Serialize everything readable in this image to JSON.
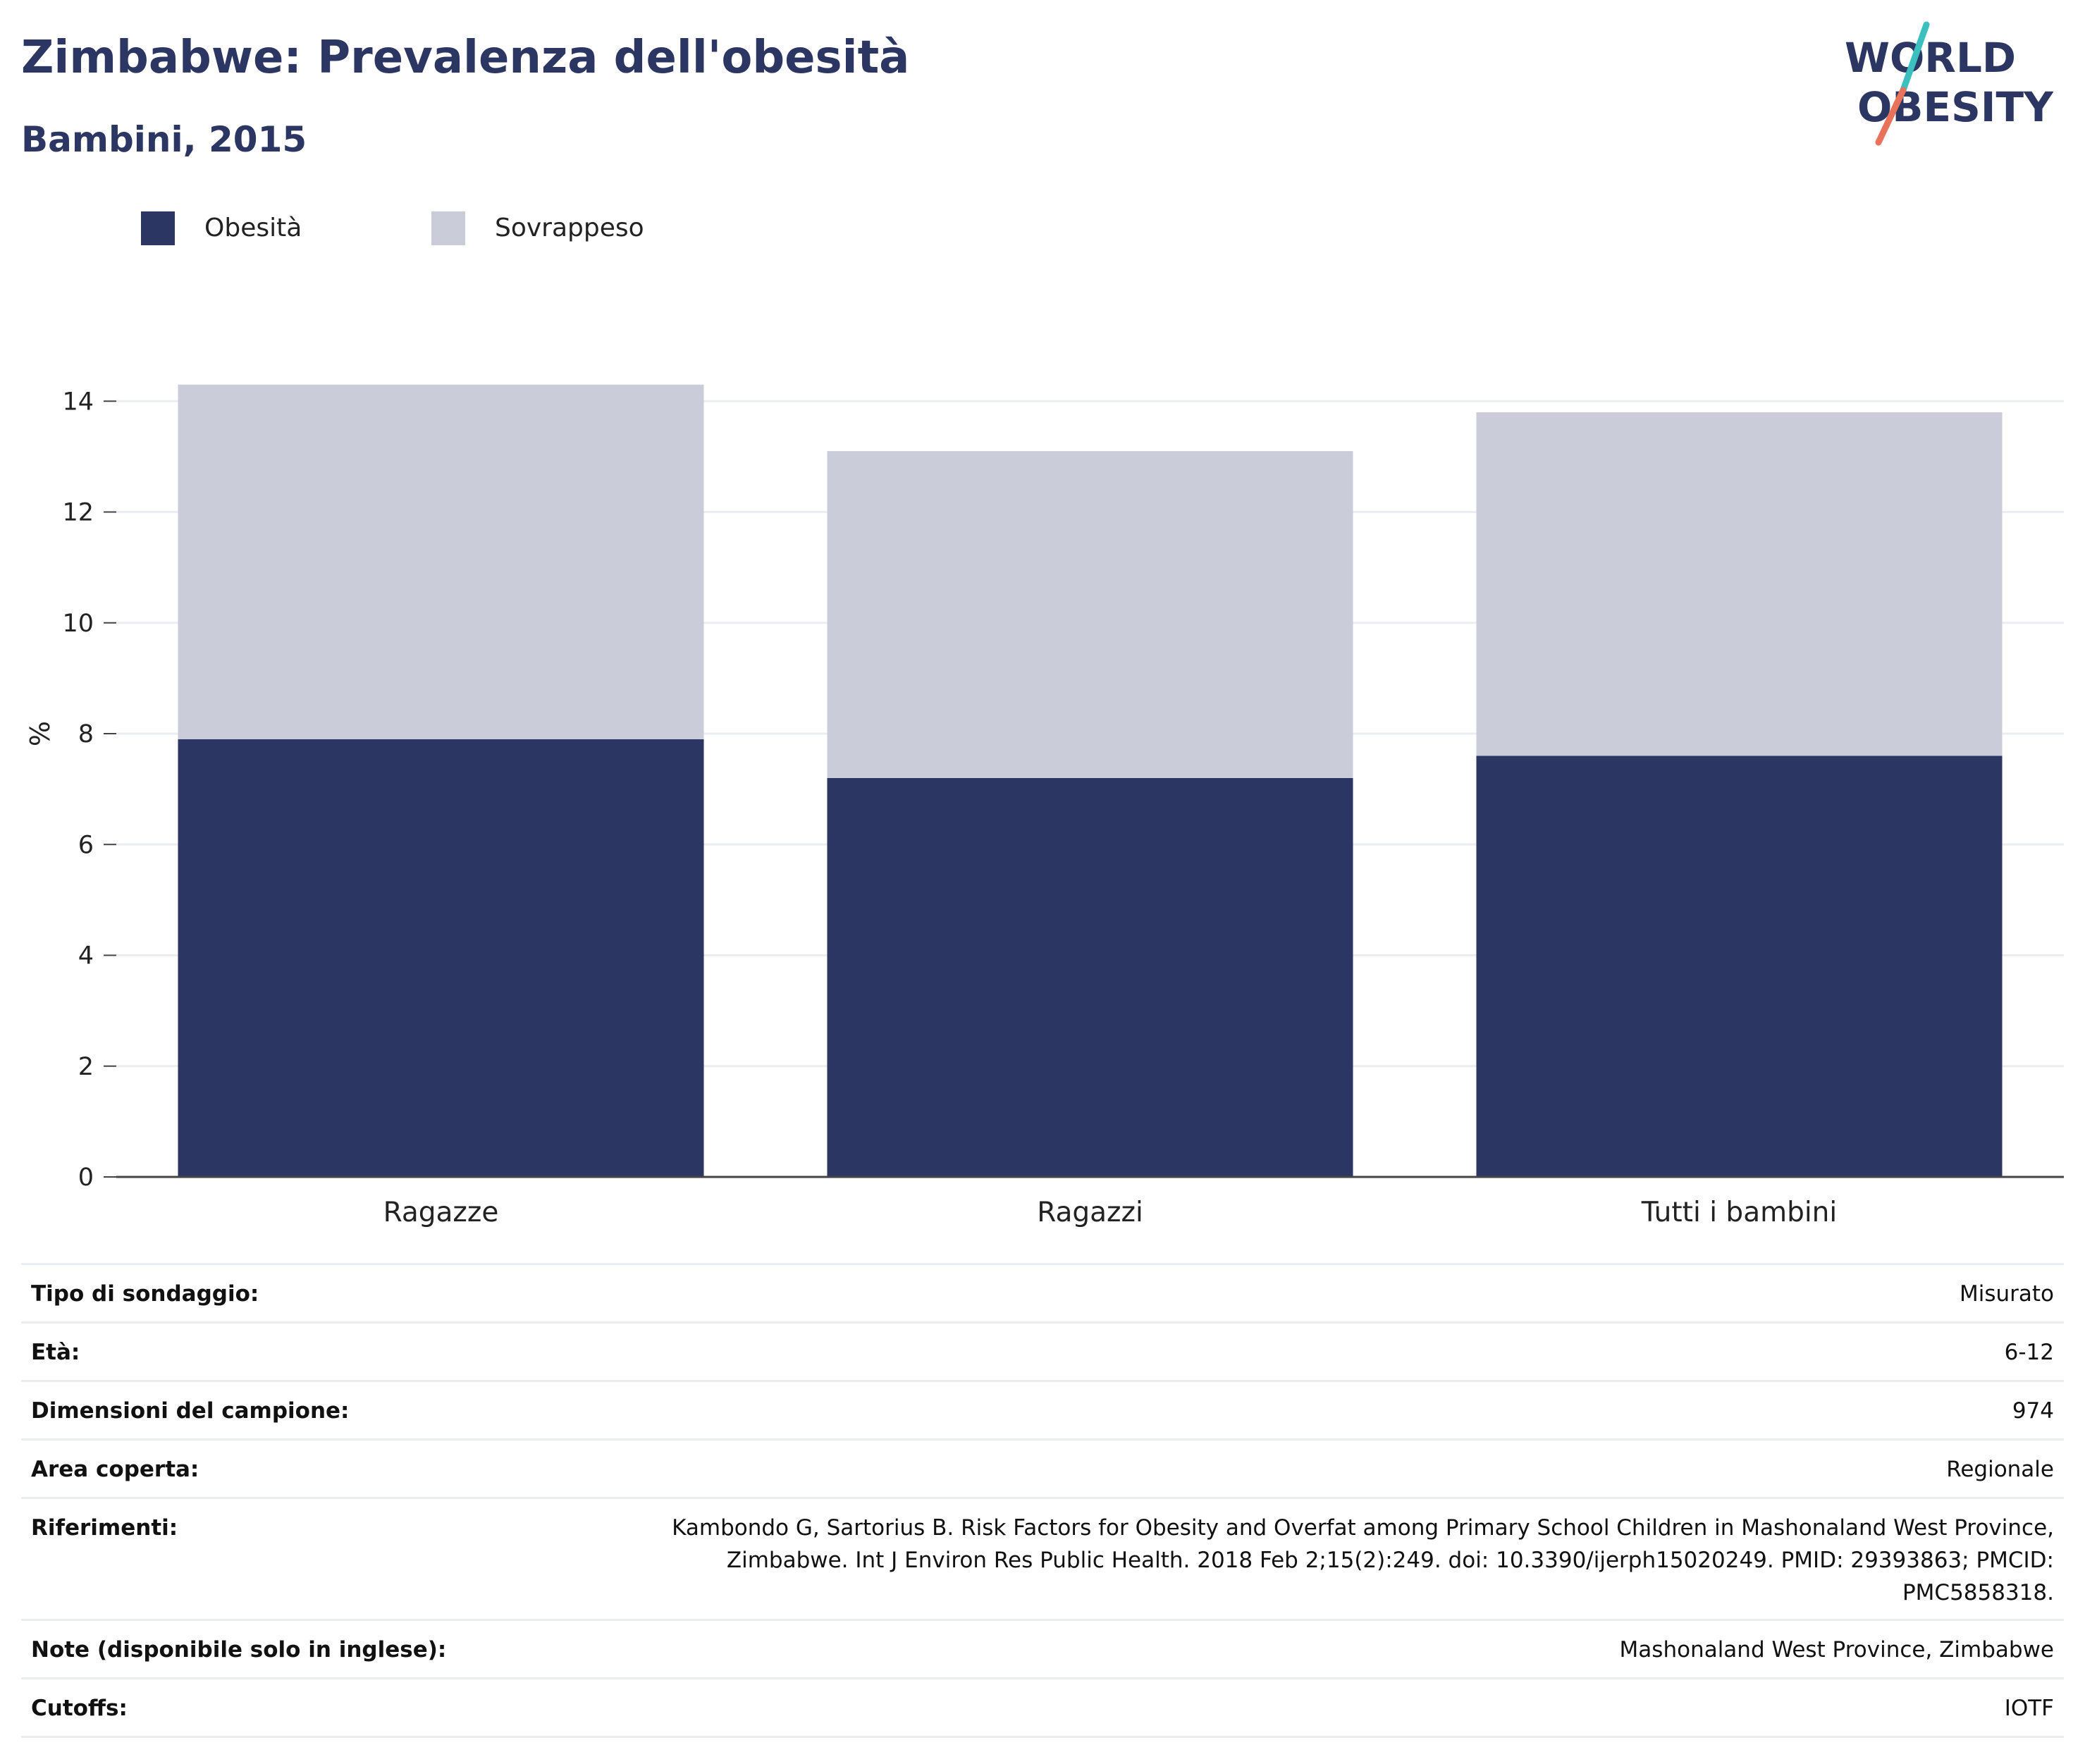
{
  "header": {
    "title": "Zimbabwe: Prevalenza dell'obesità",
    "subtitle": "Bambini, 2015"
  },
  "logo": {
    "line1": "WORLD",
    "line2": "OBESITY",
    "colors": {
      "text": "#2b3663",
      "slash_top": "#3bbfbf",
      "slash_bottom": "#e8735a"
    }
  },
  "legend": [
    {
      "label": "Obesità",
      "color": "#2b3663"
    },
    {
      "label": "Sovrappeso",
      "color": "#cacdd9"
    }
  ],
  "chart_data": {
    "type": "bar",
    "stacked": true,
    "categories": [
      "Ragazze",
      "Ragazzi",
      "Tutti i bambini"
    ],
    "series": [
      {
        "name": "Obesità",
        "values": [
          7.9,
          7.2,
          7.6
        ],
        "color": "#2b3663"
      },
      {
        "name": "Sovrappeso",
        "values": [
          6.4,
          5.9,
          6.2
        ],
        "color": "#cacdd9"
      }
    ],
    "xlabel": "",
    "ylabel": "%",
    "ylim": [
      0,
      14.5
    ],
    "yticks": [
      0,
      2,
      4,
      6,
      8,
      10,
      12,
      14
    ],
    "grid": true,
    "legend_position": "top-left"
  },
  "details": [
    {
      "label": "Tipo di sondaggio:",
      "value": "Misurato"
    },
    {
      "label": "Età:",
      "value": "6-12"
    },
    {
      "label": "Dimensioni del campione:",
      "value": "974"
    },
    {
      "label": "Area coperta:",
      "value": "Regionale"
    },
    {
      "label": "Riferimenti:",
      "value": "Kambondo G, Sartorius B. Risk Factors for Obesity and Overfat among Primary School Children in Mashonaland West Province, Zimbabwe. Int J Environ Res Public Health. 2018 Feb 2;15(2):249. doi: 10.3390/ijerph15020249. PMID: 29393863; PMCID: PMC5858318."
    },
    {
      "label": "Note (disponibile solo in inglese):",
      "value": "Mashonaland West Province, Zimbabwe"
    },
    {
      "label": "Cutoffs:",
      "value": "IOTF"
    }
  ]
}
